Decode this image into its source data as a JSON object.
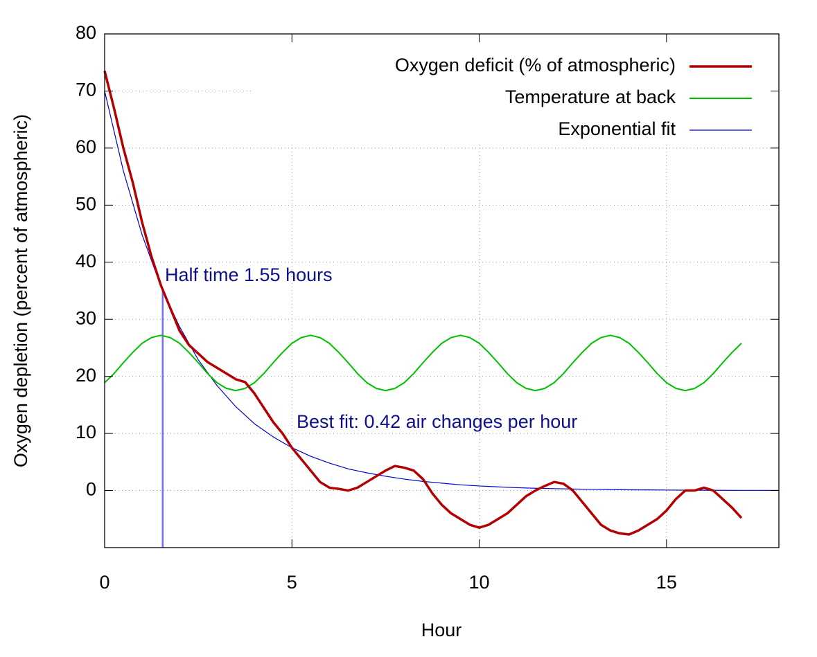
{
  "chart_data": {
    "type": "line",
    "xlabel": "Hour",
    "ylabel": "Oxygen depletion (percent of atmospheric)",
    "xlim": [
      0,
      18
    ],
    "ylim": [
      -10,
      80
    ],
    "xticks": [
      0,
      5,
      10,
      15
    ],
    "yticks": [
      0,
      10,
      20,
      30,
      40,
      50,
      60,
      70,
      80
    ],
    "grid": true,
    "legend": "top-right",
    "x": [
      0,
      0.25,
      0.5,
      0.75,
      1,
      1.25,
      1.5,
      1.75,
      2,
      2.25,
      2.5,
      2.75,
      3,
      3.25,
      3.5,
      3.75,
      4,
      4.25,
      4.5,
      4.75,
      5,
      5.25,
      5.5,
      5.75,
      6,
      6.25,
      6.5,
      6.75,
      7,
      7.25,
      7.5,
      7.75,
      8,
      8.25,
      8.5,
      8.75,
      9,
      9.25,
      9.5,
      9.75,
      10,
      10.25,
      10.5,
      10.75,
      11,
      11.25,
      11.5,
      11.75,
      12,
      12.25,
      12.5,
      12.75,
      13,
      13.25,
      13.5,
      13.75,
      14,
      14.25,
      14.5,
      14.75,
      15,
      15.25,
      15.5,
      15.75,
      16,
      16.25,
      16.5,
      16.75,
      17
    ],
    "series": [
      {
        "name": "Oxygen deficit (% of atmospheric)",
        "color": "#b40000",
        "width": 3.5,
        "values": [
          73.5,
          67,
          60,
          54,
          47,
          41,
          36,
          32,
          28,
          25.5,
          24,
          22.5,
          21.5,
          20.5,
          19.5,
          19,
          17,
          14.5,
          12,
          10,
          7.5,
          5.5,
          3.5,
          1.5,
          0.5,
          0.3,
          0,
          0.5,
          1.5,
          2.5,
          3.5,
          4.3,
          4,
          3.5,
          2,
          -0.5,
          -2.5,
          -4,
          -5,
          -6,
          -6.5,
          -6,
          -5,
          -4,
          -2.5,
          -1,
          0,
          0.8,
          1.5,
          1.2,
          0,
          -2,
          -4,
          -6,
          -7,
          -7.5,
          -7.7,
          -7,
          -6,
          -5,
          -3.5,
          -1.5,
          0,
          0,
          0.5,
          0,
          -1.5,
          -3,
          -4.8
        ]
      },
      {
        "name": "Temperature at back",
        "color": "#00c000",
        "width": 2,
        "values": [
          18.9,
          20.5,
          22.4,
          24.2,
          25.8,
          26.8,
          27.2,
          26.8,
          25.8,
          24.2,
          22.4,
          20.5,
          18.9,
          17.9,
          17.5,
          17.9,
          18.9,
          20.5,
          22.4,
          24.2,
          25.8,
          26.8,
          27.2,
          26.8,
          25.8,
          24.2,
          22.4,
          20.5,
          18.9,
          17.9,
          17.5,
          17.9,
          18.9,
          20.5,
          22.4,
          24.2,
          25.8,
          26.8,
          27.2,
          26.8,
          25.8,
          24.2,
          22.4,
          20.5,
          18.9,
          17.9,
          17.5,
          17.9,
          18.9,
          20.5,
          22.4,
          24.2,
          25.8,
          26.8,
          27.2,
          26.8,
          25.8,
          24.2,
          22.4,
          20.5,
          18.9,
          17.9,
          17.5,
          17.9,
          18.9,
          20.5,
          22.4,
          24.2,
          25.8
        ]
      },
      {
        "name": "Exponential fit",
        "color": "#0000cc",
        "width": 1.2,
        "x": [
          0,
          0.5,
          1,
          1.5,
          2,
          2.5,
          3,
          3.5,
          4,
          4.5,
          5,
          5.5,
          6,
          6.5,
          7,
          7.5,
          8,
          8.5,
          9,
          9.5,
          10,
          10.5,
          11,
          11.5,
          12,
          12.5,
          13,
          13.5,
          14,
          14.5,
          15,
          15.5,
          16,
          16.5,
          17,
          17.5,
          18
        ],
        "values": [
          70,
          56,
          44.8,
          35.8,
          28.7,
          22.9,
          18.4,
          14.7,
          11.7,
          9.4,
          7.5,
          6.0,
          4.8,
          3.8,
          3.1,
          2.5,
          2.0,
          1.6,
          1.3,
          1.0,
          0.8,
          0.64,
          0.5,
          0.4,
          0.33,
          0.26,
          0.21,
          0.17,
          0.13,
          0.11,
          0.09,
          0.07,
          0.05,
          0.04,
          0.03,
          0.03,
          0.02
        ]
      }
    ],
    "half_time_line": {
      "x": 1.55,
      "y": 35,
      "color": "#7070ee"
    },
    "annotations": [
      "Half time 1.55 hours",
      "Best fit: 0.42 air changes per hour"
    ]
  }
}
